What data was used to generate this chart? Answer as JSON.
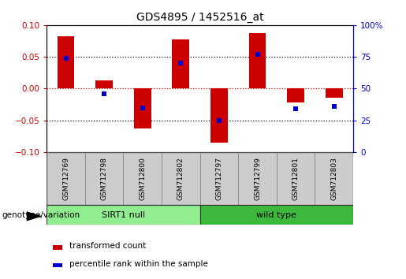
{
  "title": "GDS4895 / 1452516_at",
  "samples": [
    "GSM712769",
    "GSM712798",
    "GSM712800",
    "GSM712802",
    "GSM712797",
    "GSM712799",
    "GSM712801",
    "GSM712803"
  ],
  "bar_values": [
    0.083,
    0.013,
    -0.063,
    0.077,
    -0.085,
    0.088,
    -0.022,
    -0.015
  ],
  "percentile_values": [
    0.048,
    -0.008,
    -0.03,
    0.04,
    -0.05,
    0.054,
    -0.032,
    -0.028
  ],
  "bar_color": "#cc0000",
  "percentile_color": "#0000cc",
  "ylim": [
    -0.1,
    0.1
  ],
  "yticks_left": [
    -0.1,
    -0.05,
    0.0,
    0.05,
    0.1
  ],
  "yticks_right_vals": [
    -0.1,
    -0.05,
    0.0,
    0.05,
    0.1
  ],
  "yticks_right_labels": [
    "0",
    "25",
    "50",
    "75",
    "100%"
  ],
  "group1_label": "SIRT1 null",
  "group2_label": "wild type",
  "group1_color": "#90ee90",
  "group2_color": "#3cb83c",
  "legend_bar_label": "transformed count",
  "legend_pct_label": "percentile rank within the sample",
  "xlabel_group": "genotype/variation",
  "bar_width": 0.45,
  "percentile_marker_size": 5,
  "sample_bg_color": "#cccccc",
  "sample_border_color": "#888888"
}
